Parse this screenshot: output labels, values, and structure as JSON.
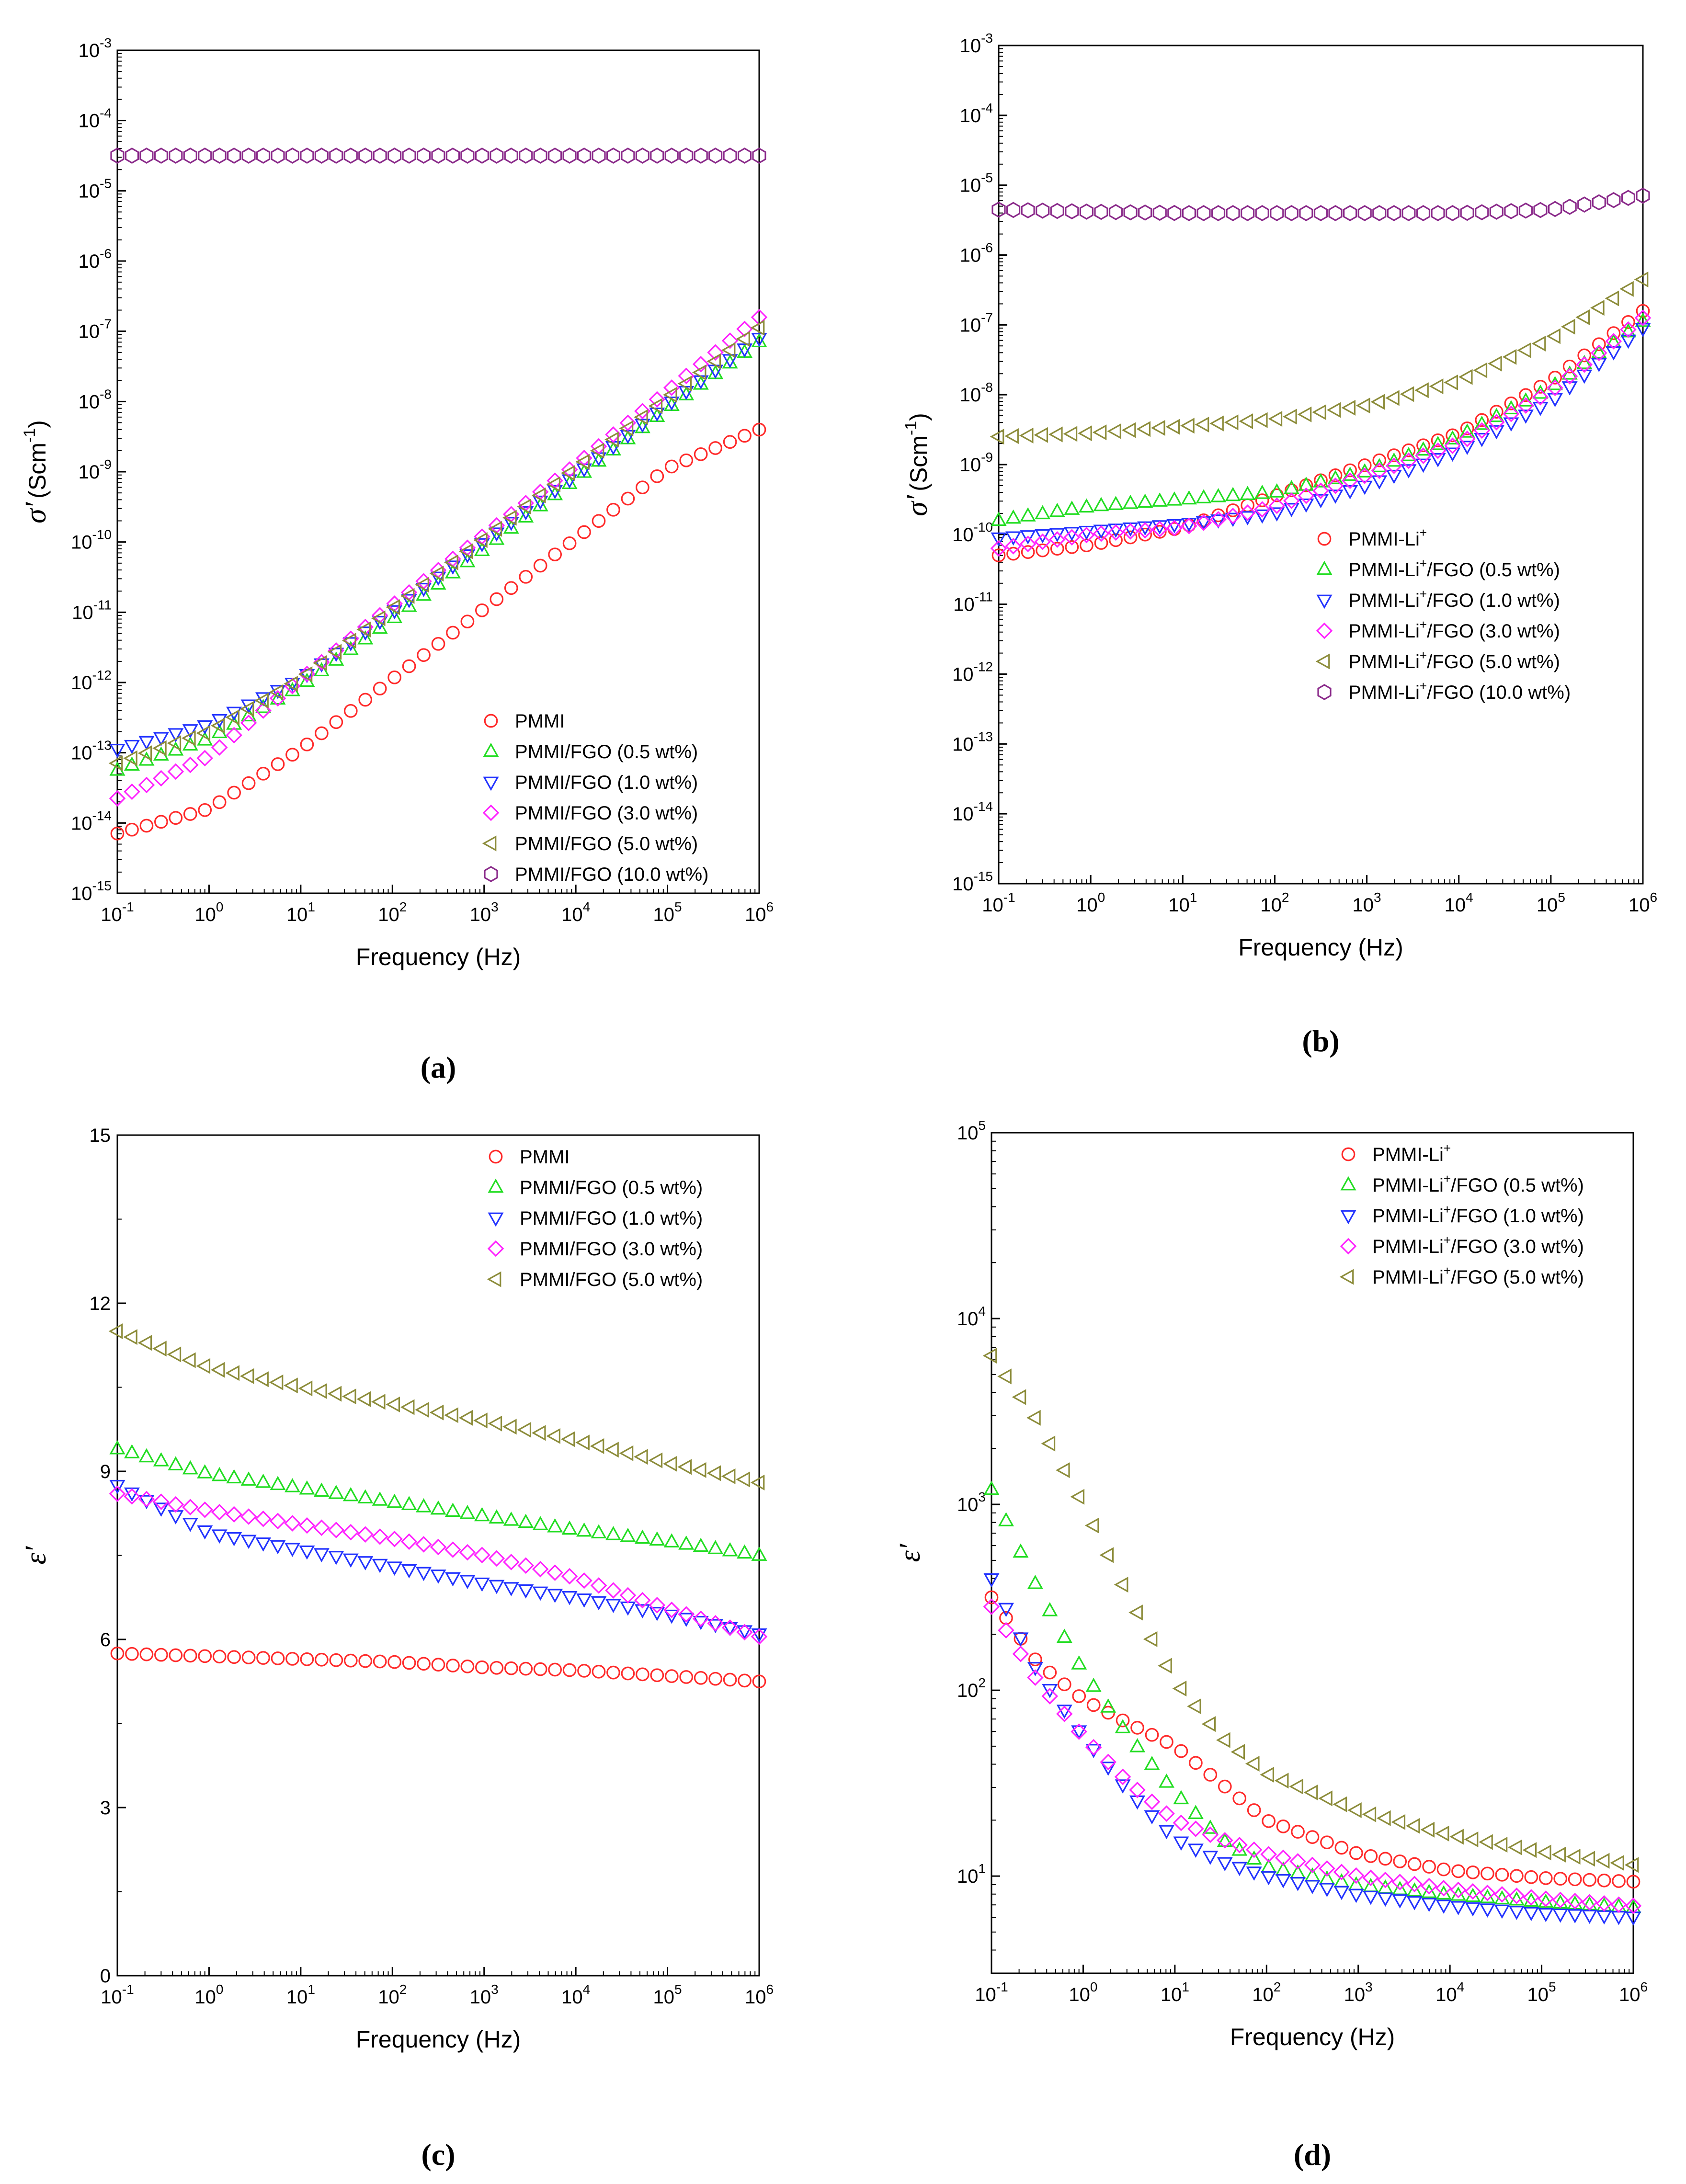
{
  "colors": {
    "PMMI": "#ff2a2a",
    "FGO0.5": "#22dd22",
    "FGO1.0": "#2233ff",
    "FGO3.0": "#ff22ff",
    "FGO5.0": "#8c8c3a",
    "FGO10.0": "#8a2a8a"
  },
  "chart_data": [
    {
      "id": "a",
      "type": "scatter",
      "panel_label": "(a)",
      "xscale": "log",
      "yscale": "log",
      "xlim": [
        0.1,
        1000000
      ],
      "ylim": [
        1e-15,
        0.001
      ],
      "xlabel": "Frequency (Hz)",
      "ylabel_symbol": "σ′",
      "ylabel_unit": "(Scm",
      "ylabel_exp": "-1",
      "ylabel_close": ")",
      "x_ticks": [
        "10",
        "10",
        "10",
        "10",
        "10",
        "10",
        "10",
        "10"
      ],
      "x_tick_exps": [
        "-1",
        "0",
        "1",
        "2",
        "3",
        "4",
        "5",
        "6"
      ],
      "y_tick_exps": [
        "-15",
        "-14",
        "-13",
        "-12",
        "-11",
        "-10",
        "-9",
        "-8",
        "-7",
        "-6",
        "-5",
        "-4",
        "-3"
      ],
      "legend": {
        "position": "bottom-right",
        "entries": [
          "PMMI",
          "PMMI/FGO (0.5 wt%)",
          "PMMI/FGO (1.0 wt%)",
          "PMMI/FGO (3.0 wt%)",
          "PMMI/FGO (5.0 wt%)",
          "PMMI/FGO (10.0 wt%)"
        ]
      },
      "series": [
        {
          "name": "PMMI",
          "marker": "circle",
          "color": "PMMI",
          "logx": [
            -1,
            0,
            1,
            2,
            3,
            4,
            5,
            6
          ],
          "logy": [
            -14.15,
            -13.8,
            -12.95,
            -11.95,
            -10.95,
            -9.95,
            -8.95,
            -8.4
          ]
        },
        {
          "name": "PMMI/FGO (0.5 wt%)",
          "marker": "triangle-up",
          "color": "FGO0.5",
          "logx": [
            -1,
            0,
            1,
            2,
            3,
            4,
            5,
            6
          ],
          "logy": [
            -13.25,
            -12.8,
            -12.05,
            -11.1,
            -10.1,
            -9.1,
            -8.1,
            -7.15
          ]
        },
        {
          "name": "PMMI/FGO (1.0 wt%)",
          "marker": "triangle-down",
          "color": "FGO1.0",
          "logx": [
            -1,
            0,
            1,
            2,
            3,
            4,
            5,
            6
          ],
          "logy": [
            -12.95,
            -12.6,
            -11.95,
            -11.0,
            -10.0,
            -9.05,
            -8.05,
            -7.1
          ]
        },
        {
          "name": "PMMI/FGO (3.0 wt%)",
          "marker": "diamond",
          "color": "FGO3.0",
          "logx": [
            -1,
            0,
            1,
            2,
            3,
            4,
            5,
            6
          ],
          "logy": [
            -13.65,
            -13.05,
            -11.95,
            -10.9,
            -9.9,
            -8.9,
            -7.85,
            -6.8
          ]
        },
        {
          "name": "PMMI/FGO (5.0 wt%)",
          "marker": "triangle-left",
          "color": "FGO5.0",
          "logx": [
            -1,
            0,
            1,
            2,
            3,
            4,
            5,
            6
          ],
          "logy": [
            -13.15,
            -12.7,
            -11.95,
            -10.95,
            -9.95,
            -8.95,
            -7.95,
            -6.95
          ]
        },
        {
          "name": "PMMI/FGO (10.0 wt%)",
          "marker": "hexagon",
          "color": "FGO10.0",
          "logx": [
            -1,
            0,
            1,
            2,
            3,
            4,
            5,
            6
          ],
          "logy": [
            -4.5,
            -4.5,
            -4.5,
            -4.5,
            -4.5,
            -4.5,
            -4.5,
            -4.5
          ]
        }
      ]
    },
    {
      "id": "b",
      "type": "scatter",
      "panel_label": "(b)",
      "xscale": "log",
      "yscale": "log",
      "xlim": [
        0.1,
        1000000
      ],
      "ylim": [
        1e-15,
        0.001
      ],
      "xlabel": "Frequency (Hz)",
      "ylabel_symbol": "σ′",
      "ylabel_unit": "(Scm",
      "ylabel_exp": "-1",
      "ylabel_close": ")",
      "x_ticks": [
        "10",
        "10",
        "10",
        "10",
        "10",
        "10",
        "10",
        "10"
      ],
      "x_tick_exps": [
        "-1",
        "0",
        "1",
        "2",
        "3",
        "4",
        "5",
        "6"
      ],
      "y_tick_exps": [
        "-15",
        "-14",
        "-13",
        "-12",
        "-11",
        "-10",
        "-9",
        "-8",
        "-7",
        "-6",
        "-5",
        "-4",
        "-3"
      ],
      "legend": {
        "position": "bottom-right",
        "entries_base": [
          "PMMI-Li",
          "PMMI-Li",
          "PMMI-Li",
          "PMMI-Li",
          "PMMI-Li",
          "PMMI-Li"
        ],
        "entries_sup": "+",
        "entries_tail": [
          "",
          "/FGO (0.5 wt%)",
          "/FGO (1.0 wt%)",
          "/FGO (3.0 wt%)",
          "/FGO (5.0 wt%)",
          "/FGO (10.0 wt%)"
        ]
      },
      "series": [
        {
          "name": "PMMI-Li+",
          "marker": "circle",
          "color": "PMMI",
          "logx": [
            -1,
            0,
            1,
            2,
            3,
            4,
            5,
            6
          ],
          "logy": [
            -10.3,
            -10.15,
            -9.9,
            -9.45,
            -9.0,
            -8.55,
            -7.8,
            -6.8
          ]
        },
        {
          "name": "PMMI-Li+/FGO (0.5 wt%)",
          "marker": "triangle-up",
          "color": "FGO0.5",
          "logx": [
            -1,
            0,
            1,
            2,
            3,
            4,
            5,
            6
          ],
          "logy": [
            -9.8,
            -9.6,
            -9.5,
            -9.4,
            -9.1,
            -8.6,
            -7.9,
            -6.95
          ]
        },
        {
          "name": "PMMI-Li+/FGO (1.0 wt%)",
          "marker": "triangle-down",
          "color": "FGO1.0",
          "logx": [
            -1,
            0,
            1,
            2,
            3,
            4,
            5,
            6
          ],
          "logy": [
            -10.05,
            -9.95,
            -9.85,
            -9.7,
            -9.3,
            -8.8,
            -8.1,
            -7.05
          ]
        },
        {
          "name": "PMMI-Li+/FGO (3.0 wt%)",
          "marker": "diamond",
          "color": "FGO3.0",
          "logx": [
            -1,
            0,
            1,
            2,
            3,
            4,
            5,
            6
          ],
          "logy": [
            -10.2,
            -10.0,
            -9.9,
            -9.6,
            -9.15,
            -8.7,
            -7.95,
            -6.9
          ]
        },
        {
          "name": "PMMI-Li+/FGO (5.0 wt%)",
          "marker": "triangle-left",
          "color": "FGO5.0",
          "logx": [
            -1,
            0,
            1,
            2,
            3,
            4,
            5,
            6
          ],
          "logy": [
            -8.6,
            -8.55,
            -8.45,
            -8.35,
            -8.15,
            -7.8,
            -7.2,
            -6.35
          ]
        },
        {
          "name": "PMMI-Li+/FGO (10.0 wt%)",
          "marker": "hexagon",
          "color": "FGO10.0",
          "logx": [
            -1,
            0,
            1,
            2,
            3,
            4,
            5,
            6
          ],
          "logy": [
            -5.35,
            -5.38,
            -5.4,
            -5.4,
            -5.4,
            -5.4,
            -5.35,
            -5.15
          ]
        }
      ]
    },
    {
      "id": "c",
      "type": "scatter",
      "panel_label": "(c)",
      "xscale": "log",
      "yscale": "linear",
      "xlim": [
        0.1,
        1000000
      ],
      "ylim": [
        0,
        15
      ],
      "xlabel": "Frequency (Hz)",
      "ylabel_symbol": "ε′",
      "x_ticks": [
        "10",
        "10",
        "10",
        "10",
        "10",
        "10",
        "10",
        "10"
      ],
      "x_tick_exps": [
        "-1",
        "0",
        "1",
        "2",
        "3",
        "4",
        "5",
        "6"
      ],
      "y_ticks": [
        "0",
        "3",
        "6",
        "9",
        "12",
        "15"
      ],
      "legend": {
        "position": "top-right",
        "entries": [
          "PMMI",
          "PMMI/FGO (0.5 wt%)",
          "PMMI/FGO (1.0 wt%)",
          "PMMI/FGO (3.0 wt%)",
          "PMMI/FGO (5.0 wt%)"
        ]
      },
      "series": [
        {
          "name": "PMMI",
          "marker": "circle",
          "color": "PMMI",
          "logx": [
            -1,
            0,
            1,
            2,
            3,
            4,
            5,
            6
          ],
          "y": [
            5.75,
            5.7,
            5.65,
            5.6,
            5.5,
            5.45,
            5.35,
            5.25
          ]
        },
        {
          "name": "PMMI/FGO (0.5 wt%)",
          "marker": "triangle-up",
          "color": "FGO0.5",
          "logx": [
            -1,
            0,
            1,
            2,
            3,
            4,
            5,
            6
          ],
          "y": [
            9.4,
            8.95,
            8.7,
            8.45,
            8.2,
            7.95,
            7.75,
            7.5
          ]
        },
        {
          "name": "PMMI/FGO (1.0 wt%)",
          "marker": "triangle-down",
          "color": "FGO1.0",
          "logx": [
            -1,
            0,
            1,
            2,
            3,
            4,
            5,
            6
          ],
          "y": [
            8.75,
            7.9,
            7.6,
            7.3,
            7.0,
            6.75,
            6.45,
            6.1
          ]
        },
        {
          "name": "PMMI/FGO (3.0 wt%)",
          "marker": "diamond",
          "color": "FGO3.0",
          "logx": [
            -1,
            0,
            1,
            2,
            3,
            4,
            5,
            6
          ],
          "y": [
            8.6,
            8.3,
            8.05,
            7.8,
            7.5,
            7.1,
            6.55,
            6.05
          ]
        },
        {
          "name": "PMMI/FGO (5.0 wt%)",
          "marker": "triangle-left",
          "color": "FGO5.0",
          "logx": [
            -1,
            0,
            1,
            2,
            3,
            4,
            5,
            6
          ],
          "y": [
            11.5,
            10.85,
            10.5,
            10.2,
            9.9,
            9.55,
            9.15,
            8.8
          ]
        }
      ]
    },
    {
      "id": "d",
      "type": "scatter",
      "panel_label": "(d)",
      "xscale": "log",
      "yscale": "log",
      "xlim": [
        0.1,
        1000000
      ],
      "ylim": [
        3,
        100000
      ],
      "xlabel": "Frequency (Hz)",
      "ylabel_symbol": "ε′",
      "x_ticks": [
        "10",
        "10",
        "10",
        "10",
        "10",
        "10",
        "10",
        "10"
      ],
      "x_tick_exps": [
        "-1",
        "0",
        "1",
        "2",
        "3",
        "4",
        "5",
        "6"
      ],
      "y_tick_exps": [
        "1",
        "2",
        "3",
        "4",
        "5"
      ],
      "legend": {
        "position": "top-right",
        "entries_base": [
          "PMMI-Li",
          "PMMI-Li",
          "PMMI-Li",
          "PMMI-Li",
          "PMMI-Li"
        ],
        "entries_sup": "+",
        "entries_tail": [
          "",
          "/FGO (0.5 wt%)",
          "/FGO (1.0 wt%)",
          "/FGO (3.0 wt%)",
          "/FGO (5.0 wt%)"
        ]
      },
      "series": [
        {
          "name": "PMMI-Li+",
          "marker": "circle",
          "color": "PMMI",
          "logx": [
            -1,
            -0.5,
            0,
            0.5,
            1,
            1.5,
            2,
            3,
            4,
            5,
            6
          ],
          "logy": [
            2.5,
            2.15,
            1.95,
            1.82,
            1.7,
            1.5,
            1.3,
            1.12,
            1.03,
            0.99,
            0.97
          ]
        },
        {
          "name": "PMMI-Li+/FGO (0.5 wt%)",
          "marker": "triangle-up",
          "color": "FGO0.5",
          "logx": [
            -1,
            -0.5,
            0,
            0.5,
            1,
            1.5,
            2,
            3,
            4,
            5,
            6
          ],
          "logy": [
            3.08,
            2.55,
            2.1,
            1.75,
            1.45,
            1.2,
            1.05,
            0.95,
            0.9,
            0.86,
            0.83
          ]
        },
        {
          "name": "PMMI-Li+/FGO (1.0 wt%)",
          "marker": "triangle-down",
          "color": "FGO1.0",
          "logx": [
            -1,
            -0.5,
            0,
            0.5,
            1,
            1.5,
            2,
            3,
            4,
            5,
            6
          ],
          "logy": [
            2.6,
            2.1,
            1.75,
            1.45,
            1.2,
            1.08,
            1.0,
            0.9,
            0.84,
            0.8,
            0.78
          ]
        },
        {
          "name": "PMMI-Li+/FGO (3.0 wt%)",
          "marker": "diamond",
          "color": "FGO3.0",
          "logx": [
            -1,
            -0.5,
            0,
            0.5,
            1,
            1.5,
            2,
            3,
            4,
            5,
            6
          ],
          "logy": [
            2.45,
            2.05,
            1.75,
            1.5,
            1.3,
            1.2,
            1.12,
            1.0,
            0.93,
            0.88,
            0.84
          ]
        },
        {
          "name": "PMMI-Li+/FGO (5.0 wt%)",
          "marker": "triangle-left",
          "color": "FGO5.0",
          "logx": [
            -1,
            -0.5,
            0,
            0.5,
            1,
            1.5,
            2,
            3,
            4,
            5,
            6
          ],
          "logy": [
            3.8,
            3.45,
            3.0,
            2.5,
            2.05,
            1.75,
            1.55,
            1.35,
            1.22,
            1.13,
            1.06
          ]
        }
      ]
    }
  ]
}
